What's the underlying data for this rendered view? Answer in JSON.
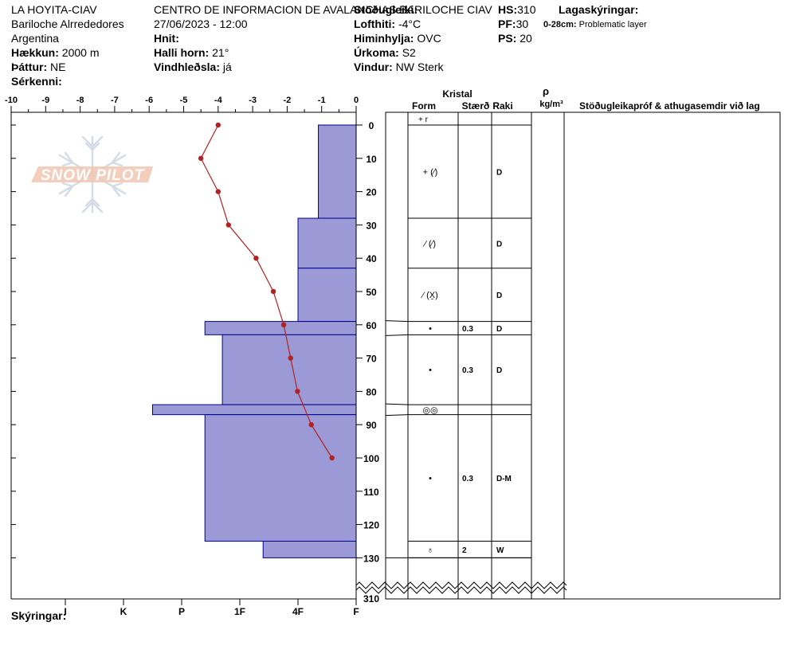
{
  "header": {
    "location": "LA HOYITA-CIAV",
    "area": "Bariloche Alrrededores",
    "country": "Argentina",
    "elev_label": "Hækkun:",
    "elev_value": "2000 m",
    "aspect_label": "Þáttur:",
    "aspect_value": "NE",
    "specifics_label": "Sérkenni:",
    "org": "CENTRO DE INFORMACION DE AVALANCHAS BARILOCHE CIAV",
    "datetime": "27/06/2023 - 12:00",
    "coords_label": "Hnit:",
    "slope_label": "Halli horn:",
    "slope_value": "21°",
    "wind_loading_label": "Vindhleðsla:",
    "wind_loading_value": "já",
    "stability_label": "Stöðugleiki:",
    "air_temp_label": "Lofthiti:",
    "air_temp_value": "-4°C",
    "sky_label": "Himinhylja:",
    "sky_value": "OVC",
    "precip_label": "Úrkoma:",
    "precip_value": "S2",
    "wind_label": "Vindur:",
    "wind_value": "NW Sterk",
    "hs_label": "HS:",
    "hs_value": "310",
    "pf_label": "PF:",
    "pf_value": "30",
    "ps_label": "PS:",
    "ps_value": "20",
    "layer_notes_label": "Lagaskýringar:",
    "layer_note_depth": "0-28cm:",
    "layer_note_text": "Problematic layer",
    "legend_label": "Skýringar:"
  },
  "watermark": "SNOW PILOT",
  "columns": {
    "crystal": "Kristal",
    "form": "Form",
    "size": "Stærð",
    "moisture": "Raki",
    "density_symbol": "ρ",
    "density_unit": "kg/m³",
    "comments": "Stöðugleikapróf & athugasemdir við lag"
  },
  "chart_data": {
    "type": "snow_profile",
    "temp_axis_ticks": [
      "-10",
      "-9",
      "-8",
      "-7",
      "-6",
      "-5",
      "-4",
      "-3",
      "-2",
      "-1",
      "0"
    ],
    "depth_ticks": [
      "0",
      "10",
      "20",
      "30",
      "40",
      "50",
      "60",
      "70",
      "80",
      "90",
      "100",
      "110",
      "120",
      "130"
    ],
    "depth_break_label": "310",
    "hardness_ticks": [
      "I",
      "K",
      "P",
      "1F",
      "4F",
      "F"
    ],
    "hardness_tick_values": [
      5,
      4,
      3,
      2,
      1,
      0
    ],
    "temperature_profile": [
      {
        "depth": 0,
        "temp": -4.0
      },
      {
        "depth": 10,
        "temp": -4.5
      },
      {
        "depth": 20,
        "temp": -4.0
      },
      {
        "depth": 30,
        "temp": -3.7
      },
      {
        "depth": 40,
        "temp": -2.9
      },
      {
        "depth": 50,
        "temp": -2.4
      },
      {
        "depth": 60,
        "temp": -2.1
      },
      {
        "depth": 70,
        "temp": -1.9
      },
      {
        "depth": 80,
        "temp": -1.7
      },
      {
        "depth": 90,
        "temp": -1.3
      },
      {
        "depth": 100,
        "temp": -0.7
      }
    ],
    "hardness_profile": [
      {
        "top": 0,
        "bottom": 28,
        "hardness": 0.65
      },
      {
        "top": 28,
        "bottom": 43,
        "hardness": 1.0
      },
      {
        "top": 43,
        "bottom": 59,
        "hardness": 1.0
      },
      {
        "top": 59,
        "bottom": 63,
        "hardness": 2.6
      },
      {
        "top": 63,
        "bottom": 84,
        "hardness": 2.3
      },
      {
        "top": 84,
        "bottom": 87,
        "hardness": 3.5
      },
      {
        "top": 87,
        "bottom": 125,
        "hardness": 2.6
      },
      {
        "top": 125,
        "bottom": 130,
        "hardness": 1.6
      }
    ],
    "layers": [
      {
        "top": 0,
        "bottom": 28,
        "form": "+ (⁄)",
        "size": "",
        "moisture": "D"
      },
      {
        "top": 28,
        "bottom": 43,
        "form": "⁄ (⁄)",
        "size": "",
        "moisture": "D"
      },
      {
        "top": 43,
        "bottom": 59,
        "form": "⁄ (X̱)",
        "size": "",
        "moisture": "D"
      },
      {
        "top": 59,
        "bottom": 63,
        "form": "•",
        "size": "0.3",
        "moisture": "D"
      },
      {
        "top": 63,
        "bottom": 84,
        "form": "•",
        "size": "0.3",
        "moisture": "D"
      },
      {
        "top": 84,
        "bottom": 87,
        "form": "◎◎",
        "size": "",
        "moisture": ""
      },
      {
        "top": 87,
        "bottom": 125,
        "form": "•",
        "size": "0.3",
        "moisture": "D-M"
      },
      {
        "top": 125,
        "bottom": 130,
        "form": "♁",
        "size": "2",
        "moisture": "W"
      }
    ],
    "surface_marker": "+ r"
  },
  "colors": {
    "hardness_fill": "#9b99d6",
    "hardness_stroke": "#00008b",
    "temp_line": "#b22222",
    "temp_point": "#b22222",
    "watermark_fill": "#f2c9b4",
    "watermark_snowflake": "#d6dde6"
  }
}
